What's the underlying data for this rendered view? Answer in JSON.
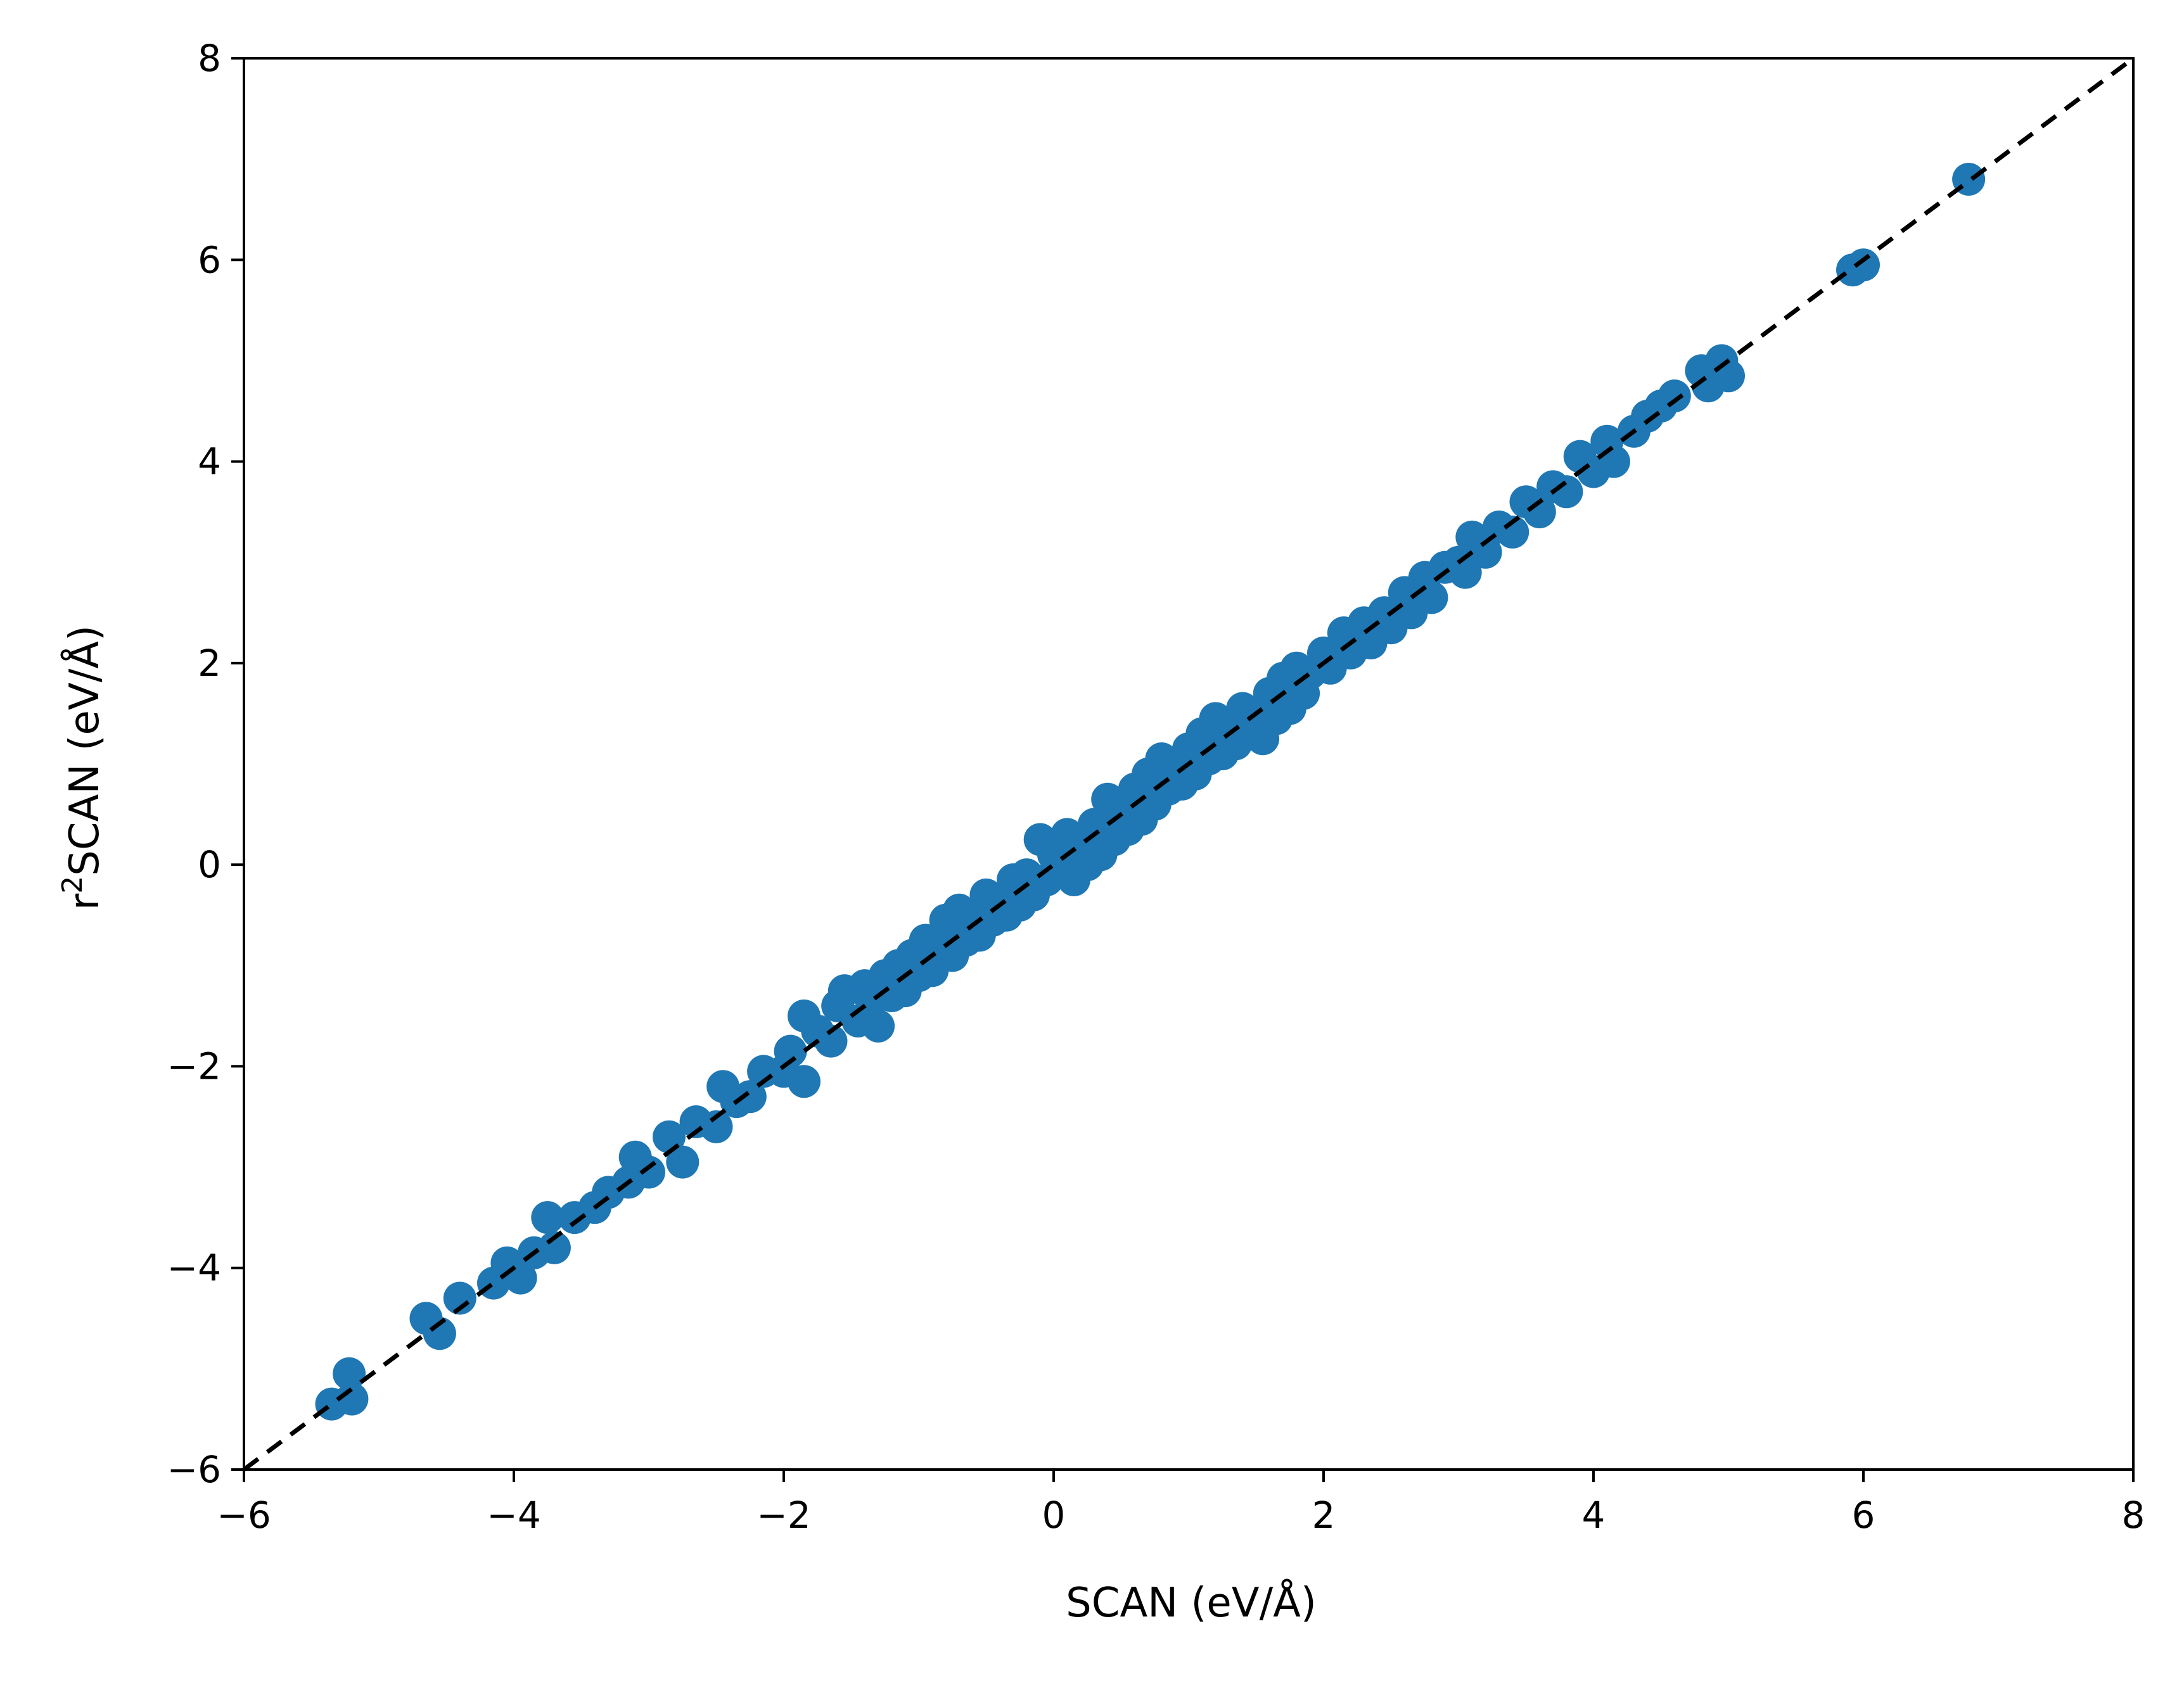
{
  "chart_data": {
    "type": "scatter",
    "title": "",
    "xlabel": "SCAN (eV/Å)",
    "ylabel_base": "r",
    "ylabel_sup": "2",
    "ylabel_rest": "SCAN (eV/Å)",
    "xlim": [
      -6,
      8
    ],
    "ylim": [
      -6,
      8
    ],
    "xticks": [
      -6,
      -4,
      -2,
      0,
      2,
      4,
      6,
      8
    ],
    "yticks": [
      -6,
      -4,
      -2,
      0,
      2,
      4,
      6,
      8
    ],
    "xtick_labels": [
      "−6",
      "−4",
      "−2",
      "0",
      "2",
      "4",
      "6",
      "8"
    ],
    "ytick_labels": [
      "−6",
      "−4",
      "−2",
      "0",
      "2",
      "4",
      "6",
      "8"
    ],
    "grid": false,
    "marker_color": "#1f77b4",
    "reference_line": {
      "style": "dashed",
      "color": "#000000",
      "from": [
        -6,
        -6
      ],
      "to": [
        8,
        8
      ]
    },
    "series": [
      {
        "points": [
          [
            -5.35,
            -5.35
          ],
          [
            -5.22,
            -5.05
          ],
          [
            -5.2,
            -5.3
          ],
          [
            -4.65,
            -4.5
          ],
          [
            -4.55,
            -4.65
          ],
          [
            -4.4,
            -4.3
          ],
          [
            -4.15,
            -4.15
          ],
          [
            -4.05,
            -3.95
          ],
          [
            -3.95,
            -4.1
          ],
          [
            -3.85,
            -3.85
          ],
          [
            -3.75,
            -3.5
          ],
          [
            -3.7,
            -3.8
          ],
          [
            -3.55,
            -3.5
          ],
          [
            -3.4,
            -3.4
          ],
          [
            -3.3,
            -3.25
          ],
          [
            -3.15,
            -3.15
          ],
          [
            -3.1,
            -2.9
          ],
          [
            -3.0,
            -3.05
          ],
          [
            -2.85,
            -2.7
          ],
          [
            -2.75,
            -2.95
          ],
          [
            -2.65,
            -2.55
          ],
          [
            -2.5,
            -2.6
          ],
          [
            -2.45,
            -2.2
          ],
          [
            -2.35,
            -2.35
          ],
          [
            -2.25,
            -2.3
          ],
          [
            -2.15,
            -2.05
          ],
          [
            -2.0,
            -2.05
          ],
          [
            -1.95,
            -1.85
          ],
          [
            -1.85,
            -1.5
          ],
          [
            -1.85,
            -2.15
          ],
          [
            -1.75,
            -1.65
          ],
          [
            -1.65,
            -1.75
          ],
          [
            -1.6,
            -1.4
          ],
          [
            -1.55,
            -1.25
          ],
          [
            -1.45,
            -1.55
          ],
          [
            -1.4,
            -1.2
          ],
          [
            -1.35,
            -1.35
          ],
          [
            -1.3,
            -1.6
          ],
          [
            -1.25,
            -1.1
          ],
          [
            -1.2,
            -1.3
          ],
          [
            -1.15,
            -1.0
          ],
          [
            -1.1,
            -1.25
          ],
          [
            -1.05,
            -0.9
          ],
          [
            -1.0,
            -1.1
          ],
          [
            -0.95,
            -0.75
          ],
          [
            -0.9,
            -1.05
          ],
          [
            -0.85,
            -0.8
          ],
          [
            -0.8,
            -0.55
          ],
          [
            -0.75,
            -0.9
          ],
          [
            -0.7,
            -0.45
          ],
          [
            -0.65,
            -0.75
          ],
          [
            -0.6,
            -0.5
          ],
          [
            -0.55,
            -0.7
          ],
          [
            -0.5,
            -0.3
          ],
          [
            -0.45,
            -0.55
          ],
          [
            -0.4,
            -0.35
          ],
          [
            -0.35,
            -0.5
          ],
          [
            -0.3,
            -0.15
          ],
          [
            -0.25,
            -0.4
          ],
          [
            -0.2,
            -0.1
          ],
          [
            -0.15,
            -0.3
          ],
          [
            -0.1,
            0.25
          ],
          [
            -0.05,
            -0.15
          ],
          [
            0.0,
            0.1
          ],
          [
            0.05,
            -0.05
          ],
          [
            0.1,
            0.3
          ],
          [
            0.15,
            -0.15
          ],
          [
            0.2,
            0.15
          ],
          [
            0.25,
            0.0
          ],
          [
            0.3,
            0.4
          ],
          [
            0.35,
            0.1
          ],
          [
            0.4,
            0.65
          ],
          [
            0.45,
            0.25
          ],
          [
            0.5,
            0.55
          ],
          [
            0.55,
            0.35
          ],
          [
            0.6,
            0.75
          ],
          [
            0.65,
            0.45
          ],
          [
            0.7,
            0.9
          ],
          [
            0.75,
            0.6
          ],
          [
            0.8,
            1.05
          ],
          [
            0.85,
            0.75
          ],
          [
            0.9,
            0.95
          ],
          [
            0.95,
            0.8
          ],
          [
            1.0,
            1.15
          ],
          [
            1.05,
            0.9
          ],
          [
            1.1,
            1.3
          ],
          [
            1.15,
            1.05
          ],
          [
            1.2,
            1.45
          ],
          [
            1.25,
            1.1
          ],
          [
            1.3,
            1.35
          ],
          [
            1.35,
            1.2
          ],
          [
            1.4,
            1.55
          ],
          [
            1.45,
            1.3
          ],
          [
            1.5,
            1.5
          ],
          [
            1.55,
            1.25
          ],
          [
            1.6,
            1.7
          ],
          [
            1.65,
            1.45
          ],
          [
            1.7,
            1.85
          ],
          [
            1.75,
            1.55
          ],
          [
            1.8,
            1.95
          ],
          [
            1.85,
            1.7
          ],
          [
            1.9,
            1.9
          ],
          [
            2.0,
            2.1
          ],
          [
            2.05,
            1.95
          ],
          [
            2.15,
            2.3
          ],
          [
            2.2,
            2.1
          ],
          [
            2.3,
            2.4
          ],
          [
            2.35,
            2.2
          ],
          [
            2.45,
            2.5
          ],
          [
            2.5,
            2.35
          ],
          [
            2.6,
            2.7
          ],
          [
            2.65,
            2.5
          ],
          [
            2.75,
            2.85
          ],
          [
            2.8,
            2.65
          ],
          [
            2.9,
            2.95
          ],
          [
            3.0,
            3.0
          ],
          [
            3.05,
            2.9
          ],
          [
            3.1,
            3.25
          ],
          [
            3.2,
            3.1
          ],
          [
            3.3,
            3.35
          ],
          [
            3.4,
            3.3
          ],
          [
            3.5,
            3.6
          ],
          [
            3.6,
            3.5
          ],
          [
            3.7,
            3.75
          ],
          [
            3.8,
            3.7
          ],
          [
            3.9,
            4.05
          ],
          [
            4.0,
            3.9
          ],
          [
            4.1,
            4.2
          ],
          [
            4.15,
            4.0
          ],
          [
            4.3,
            4.3
          ],
          [
            4.4,
            4.45
          ],
          [
            4.5,
            4.55
          ],
          [
            4.6,
            4.65
          ],
          [
            4.8,
            4.9
          ],
          [
            4.85,
            4.75
          ],
          [
            4.95,
            5.0
          ],
          [
            5.0,
            4.85
          ],
          [
            5.92,
            5.9
          ],
          [
            6.0,
            5.95
          ],
          [
            6.78,
            6.8
          ]
        ]
      }
    ]
  }
}
